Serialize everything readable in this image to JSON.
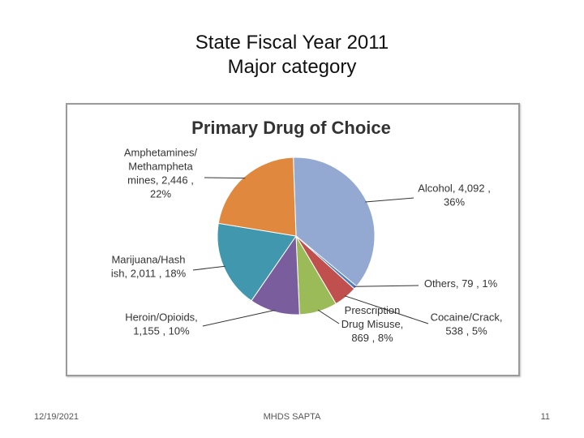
{
  "slide": {
    "title_line1": "State Fiscal Year 2011",
    "title_line2": "Major category"
  },
  "footer": {
    "date": "12/19/2021",
    "center": "MHDS SAPTA",
    "page": "11"
  },
  "chart_data": {
    "type": "pie",
    "title": "Primary Drug of Choice",
    "legend": "none",
    "slices": [
      {
        "name": "Alcohol",
        "value": 4092,
        "percent": "36%",
        "color": "#94a9d2",
        "label_lines": [
          "Alcohol,  4,092 ,",
          "36%"
        ]
      },
      {
        "name": "Others",
        "value": 79,
        "percent": "1%",
        "color": "#4f7fb9",
        "label_lines": [
          "Others,  79 ,  1%"
        ]
      },
      {
        "name": "Cocaine/Crack",
        "value": 538,
        "percent": "5%",
        "color": "#c0504d",
        "label_lines": [
          "Cocaine/Crack,",
          "538 , 5%"
        ]
      },
      {
        "name": "Prescription Drug Misuse",
        "value": 869,
        "percent": "8%",
        "color": "#9bbb59",
        "label_lines": [
          "Prescription",
          "Drug Misuse,",
          "869 , 8%"
        ]
      },
      {
        "name": "Heroin/Opioids",
        "value": 1155,
        "percent": "10%",
        "color": "#7a5d9c",
        "label_lines": [
          "Heroin/Opioids,",
          "1,155 , 10%"
        ]
      },
      {
        "name": "Marijuana/Hashish",
        "value": 2011,
        "percent": "18%",
        "color": "#4198ae",
        "label_lines": [
          "Marijuana/Hash",
          "ish,  2,011 , 18%"
        ]
      },
      {
        "name": "Amphetamines/Methamphetamines",
        "value": 2446,
        "percent": "22%",
        "color": "#e0883e",
        "label_lines": [
          "Amphetamines/",
          "Methampheta",
          "mines,  2,446 ,",
          "22%"
        ]
      }
    ]
  }
}
